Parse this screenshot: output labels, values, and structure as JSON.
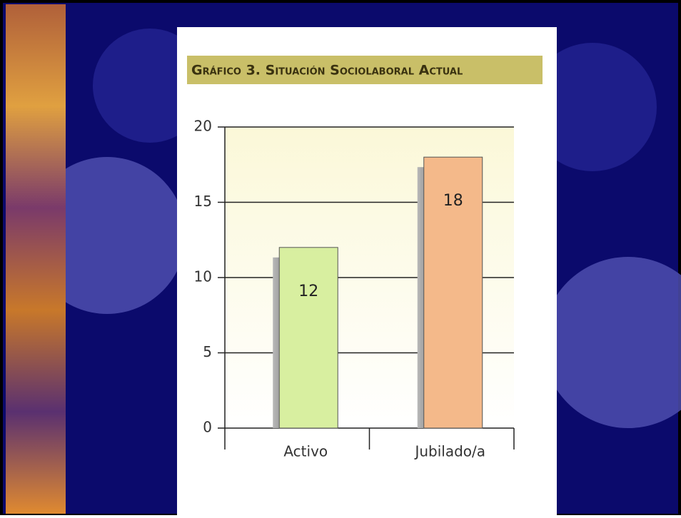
{
  "chart_data": {
    "type": "bar",
    "title": "Gráfico 3. Situación Sociolaboral Actual",
    "categories": [
      "Activo",
      "Jubilado/a"
    ],
    "series": [
      {
        "name": null,
        "colors": [
          "#d8efa0",
          "#f4b98a"
        ],
        "values": [
          12,
          18
        ]
      }
    ],
    "ylim": [
      0,
      20
    ],
    "yticks": [
      0,
      5,
      10,
      15,
      20
    ],
    "grid": true
  }
}
